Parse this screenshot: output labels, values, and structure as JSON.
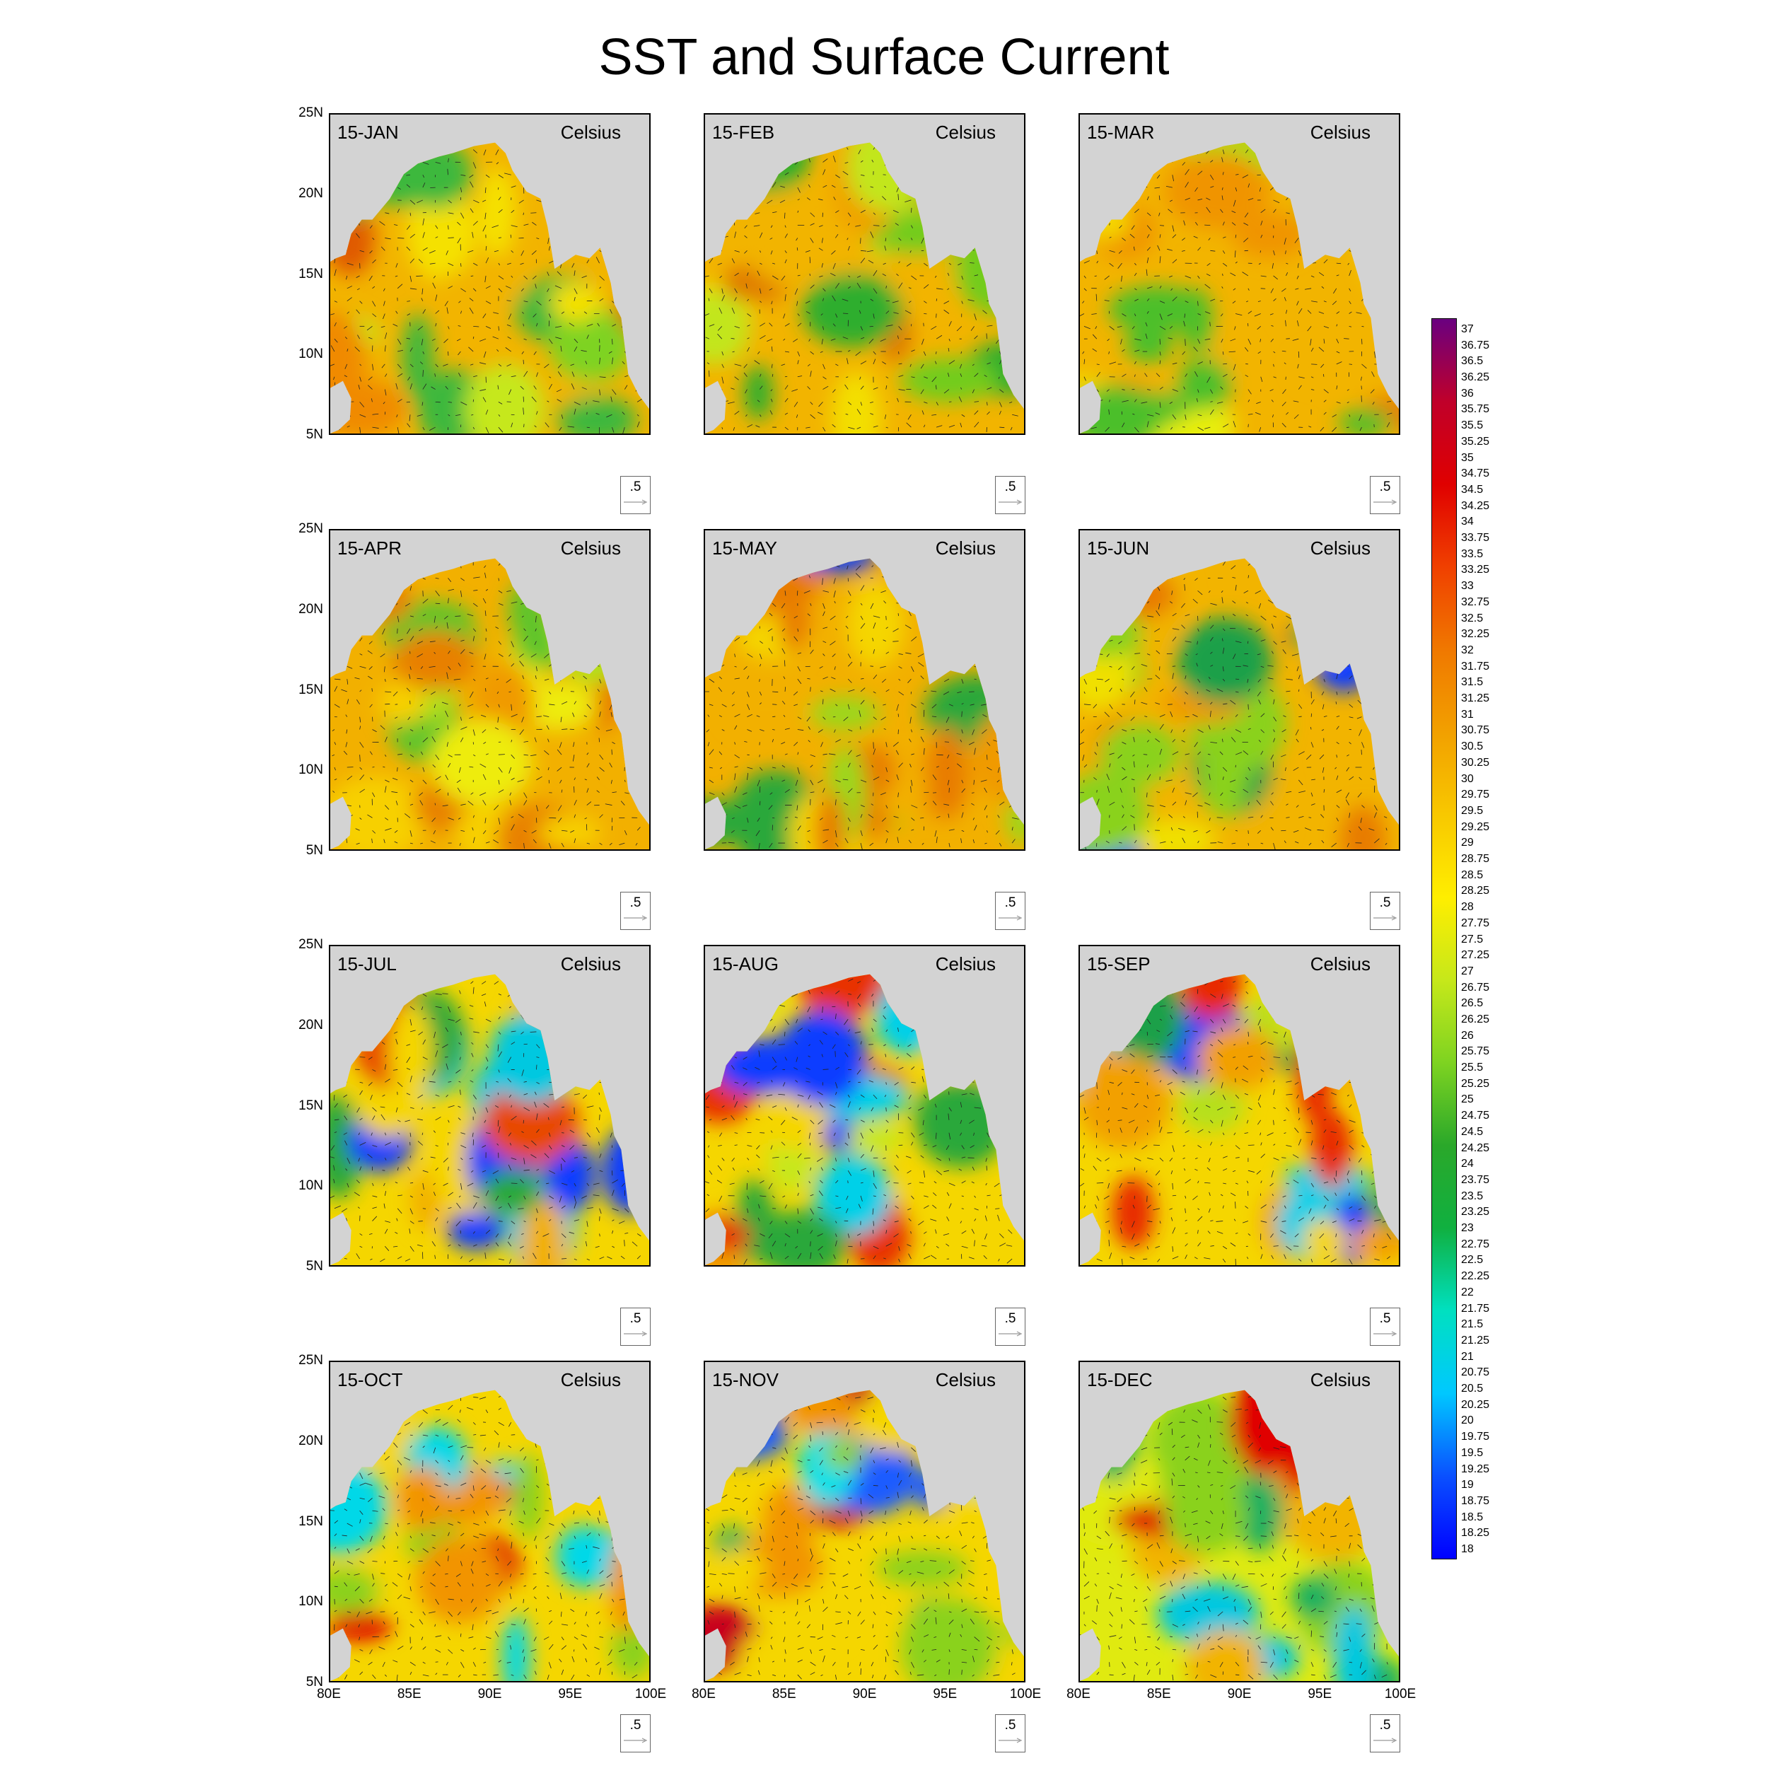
{
  "title": "SST and Surface Current",
  "unit_label": "Celsius",
  "ref_vector_label": ".5",
  "panels": [
    {
      "month": "15-JAN",
      "palette": [
        "#3cb83c",
        "#7ed321",
        "#c6e81a",
        "#f5e100",
        "#f2b400",
        "#f08a00",
        "#e05a00"
      ]
    },
    {
      "month": "15-FEB",
      "palette": [
        "#2fae2f",
        "#72cc1e",
        "#c2e61a",
        "#f3df00",
        "#f2b400",
        "#f0a000",
        "#e07a00"
      ]
    },
    {
      "month": "15-MAR",
      "palette": [
        "#4cbf2c",
        "#a8dd1c",
        "#e8ee10",
        "#f5d800",
        "#f2b400",
        "#f09400",
        "#e88000"
      ]
    },
    {
      "month": "15-APR",
      "palette": [
        "#5ec42a",
        "#b0e01a",
        "#eeec10",
        "#f7d000",
        "#f2b000",
        "#f09a00",
        "#e88000"
      ]
    },
    {
      "month": "15-MAY",
      "palette": [
        "#0a3cff",
        "#2aa83a",
        "#9ad81c",
        "#f5d600",
        "#f2b000",
        "#f09a00",
        "#e87c00"
      ]
    },
    {
      "month": "15-JUN",
      "palette": [
        "#0a3cff",
        "#1fa04a",
        "#8ad21e",
        "#f0e000",
        "#f2b400",
        "#f09a00",
        "#e87c00"
      ]
    },
    {
      "month": "15-JUL",
      "palette": [
        "#0a3cff",
        "#00c8e0",
        "#2aa83a",
        "#c6e81a",
        "#f5d600",
        "#f2b000",
        "#e84800"
      ]
    },
    {
      "month": "15-AUG",
      "palette": [
        "#0a3cff",
        "#00d0e8",
        "#2aa83a",
        "#c6e81a",
        "#f5d600",
        "#f2a000",
        "#e83000"
      ]
    },
    {
      "month": "15-SEP",
      "palette": [
        "#0a3cff",
        "#00d0e8",
        "#1fa04a",
        "#b6e01a",
        "#f5d600",
        "#f2a000",
        "#e82a00"
      ]
    },
    {
      "month": "15-OCT",
      "palette": [
        "#1a5cff",
        "#00d8e8",
        "#18b060",
        "#8ad21e",
        "#f5d600",
        "#f29400",
        "#e00000"
      ]
    },
    {
      "month": "15-NOV",
      "palette": [
        "#1a5cff",
        "#00e0e8",
        "#18b060",
        "#8ad21e",
        "#f5d600",
        "#f29400",
        "#c8001a"
      ]
    },
    {
      "month": "15-DEC",
      "palette": [
        "#00c8e0",
        "#18b060",
        "#2ab038",
        "#8ad21e",
        "#e0ea10",
        "#f2b400",
        "#e00000"
      ]
    }
  ],
  "lat_ticks": [
    "25N",
    "20N",
    "15N",
    "10N",
    "5N"
  ],
  "lon_ticks": [
    "80E",
    "85E",
    "90E",
    "95E",
    "100E"
  ],
  "chart_data": {
    "type": "heatmap",
    "title": "SST and Surface Current",
    "variable_unit": "Celsius",
    "x_range": [
      80,
      100
    ],
    "y_range": [
      5,
      25
    ],
    "colorbar": {
      "min": 18,
      "max": 37,
      "step": 0.25,
      "labels": [
        "37",
        "36.75",
        "36.5",
        "36.25",
        "36",
        "35.75",
        "35.5",
        "35.25",
        "35",
        "34.75",
        "34.5",
        "34.25",
        "34",
        "33.75",
        "33.5",
        "33.25",
        "33",
        "32.75",
        "32.5",
        "32.25",
        "32",
        "31.75",
        "31.5",
        "31.25",
        "31",
        "30.75",
        "30.5",
        "30.25",
        "30",
        "29.75",
        "29.5",
        "29.25",
        "29",
        "28.75",
        "28.5",
        "28.25",
        "28",
        "27.75",
        "27.5",
        "27.25",
        "27",
        "26.75",
        "26.5",
        "26.25",
        "26",
        "25.75",
        "25.5",
        "25.25",
        "25",
        "24.75",
        "24.5",
        "24.25",
        "24",
        "23.75",
        "23.5",
        "23.25",
        "23",
        "22.75",
        "22.5",
        "22.25",
        "22",
        "21.75",
        "21.5",
        "21.25",
        "21",
        "20.75",
        "20.5",
        "20.25",
        "20",
        "19.75",
        "19.5",
        "19.25",
        "19",
        "18.75",
        "18.5",
        "18.25",
        "18"
      ],
      "stops": [
        "#0000ff",
        "#0a50ff",
        "#00c8ff",
        "#00e0c0",
        "#10b040",
        "#2aa82a",
        "#7ed321",
        "#c6e81a",
        "#ffee00",
        "#f8c800",
        "#f2a000",
        "#f07800",
        "#f04000",
        "#e00000",
        "#c0002a",
        "#6a0080"
      ]
    }
  }
}
